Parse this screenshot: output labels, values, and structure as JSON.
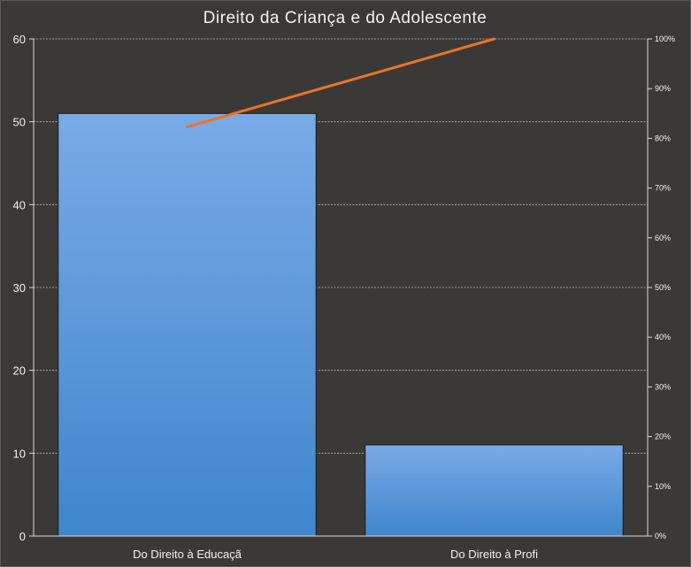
{
  "chart_data": {
    "type": "bar",
    "title": "Direito da Criança e do Adolescente",
    "categories": [
      "Do Direito à Educaçã",
      "Do Direito à Profi"
    ],
    "values": [
      51,
      11
    ],
    "ylim": [
      0,
      60
    ],
    "yticks": [
      "0",
      "10",
      "20",
      "30",
      "40",
      "50",
      "60"
    ],
    "y2lim": [
      0,
      100
    ],
    "y2ticks": [
      "0%",
      "10%",
      "20%",
      "30%",
      "40%",
      "50%",
      "60%",
      "70%",
      "80%",
      "90%",
      "100%"
    ],
    "cumulative_percent": {
      "type": "line",
      "values": [
        82.3,
        100
      ]
    },
    "grid": true,
    "legend": "none",
    "colors": {
      "bar_top": "#7aaae6",
      "bar_bottom": "#3f86cc",
      "bar_outline": "#1a1a1a",
      "line": "#e8742a",
      "background": "#3b3938"
    }
  }
}
